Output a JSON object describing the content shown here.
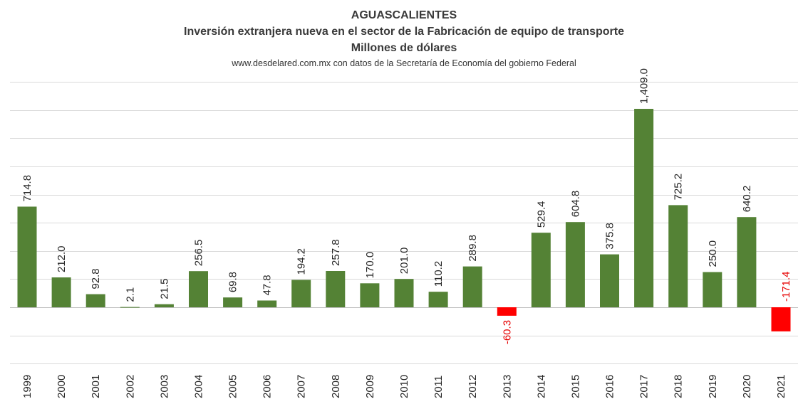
{
  "chart_data": {
    "type": "bar",
    "title": "AGUASCALIENTES",
    "subtitle": "Inversión extranjera nueva en el sector de la Fabricación de equipo de transporte",
    "unit_line": "Millones de dólares",
    "source": "www.desdelared.com.mx  con datos de la Secretaría de Economía  del gobierno  Federal",
    "categories": [
      "1999",
      "2000",
      "2001",
      "2002",
      "2003",
      "2004",
      "2005",
      "2006",
      "2007",
      "2008",
      "2009",
      "2010",
      "2011",
      "2012",
      "2013",
      "2014",
      "2015",
      "2016",
      "2017",
      "2018",
      "2019",
      "2020",
      "2021"
    ],
    "values": [
      714.8,
      212.0,
      92.8,
      2.1,
      21.5,
      256.5,
      69.8,
      47.8,
      194.2,
      257.8,
      170.0,
      201.0,
      110.2,
      289.8,
      -60.3,
      529.4,
      604.8,
      375.8,
      1409.0,
      725.2,
      250.0,
      640.2,
      -171.4
    ],
    "value_labels": [
      "714.8",
      "212.0",
      "92.8",
      "2.1",
      "21.5",
      "256.5",
      "69.8",
      "47.8",
      "194.2",
      "257.8",
      "170.0",
      "201.0",
      "110.2",
      "289.8",
      "-60.3",
      "529.4",
      "604.8",
      "375.8",
      "1,409.0",
      "725.2",
      "250.0",
      "640.2",
      "-171.4"
    ],
    "ylim": [
      -400,
      1600
    ],
    "grid": true,
    "legend": "none",
    "colors": {
      "positive": "#548235",
      "negative": "#ff0000",
      "negative_label": "#e60000"
    }
  }
}
